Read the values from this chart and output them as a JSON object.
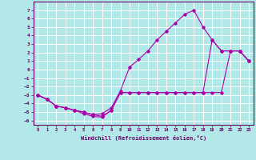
{
  "xlabel": "Windchill (Refroidissement éolien,°C)",
  "bg_color": "#b2e8e8",
  "grid_color": "#ffffff",
  "line_color": "#aa00aa",
  "xlim": [
    -0.5,
    23.5
  ],
  "ylim": [
    -6.5,
    8.0
  ],
  "xticks": [
    0,
    1,
    2,
    3,
    4,
    5,
    6,
    7,
    8,
    9,
    10,
    11,
    12,
    13,
    14,
    15,
    16,
    17,
    18,
    19,
    20,
    21,
    22,
    23
  ],
  "yticks": [
    -6,
    -5,
    -4,
    -3,
    -2,
    -1,
    0,
    1,
    2,
    3,
    4,
    5,
    6,
    7
  ],
  "line1_x": [
    0,
    1,
    2,
    3,
    4,
    5,
    6,
    7,
    8,
    9,
    10,
    11,
    12,
    13,
    14,
    15,
    16,
    17,
    18,
    19,
    20,
    21,
    22,
    23
  ],
  "line1_y": [
    -3.0,
    -3.5,
    -4.3,
    -4.5,
    -4.8,
    -5.2,
    -5.5,
    -5.6,
    -4.8,
    -2.7,
    -2.7,
    -2.7,
    -2.7,
    -2.7,
    -2.7,
    -2.7,
    -2.7,
    -2.7,
    -2.7,
    -2.7,
    -2.7,
    2.2,
    2.2,
    1.0
  ],
  "line2_x": [
    0,
    1,
    2,
    3,
    4,
    5,
    6,
    7,
    8,
    9,
    10,
    11,
    12,
    13,
    14,
    15,
    16,
    17,
    18,
    19,
    20,
    21,
    22,
    23
  ],
  "line2_y": [
    -3.0,
    -3.5,
    -4.3,
    -4.5,
    -4.8,
    -5.0,
    -5.3,
    -5.2,
    -4.5,
    -2.5,
    0.3,
    1.2,
    2.2,
    3.5,
    4.5,
    5.5,
    6.5,
    7.0,
    5.0,
    3.5,
    2.2,
    2.2,
    2.2,
    1.0
  ],
  "line3_x": [
    0,
    1,
    2,
    3,
    4,
    5,
    6,
    7,
    8,
    9,
    10,
    11,
    12,
    13,
    14,
    15,
    16,
    17,
    18,
    19,
    20,
    21,
    22,
    23
  ],
  "line3_y": [
    -3.0,
    -3.5,
    -4.3,
    -4.5,
    -4.8,
    -5.0,
    -5.3,
    -5.5,
    -4.8,
    -2.7,
    -2.7,
    -2.7,
    -2.7,
    -2.7,
    -2.7,
    -2.7,
    -2.7,
    -2.7,
    -2.7,
    3.5,
    2.2,
    2.2,
    2.2,
    1.0
  ]
}
